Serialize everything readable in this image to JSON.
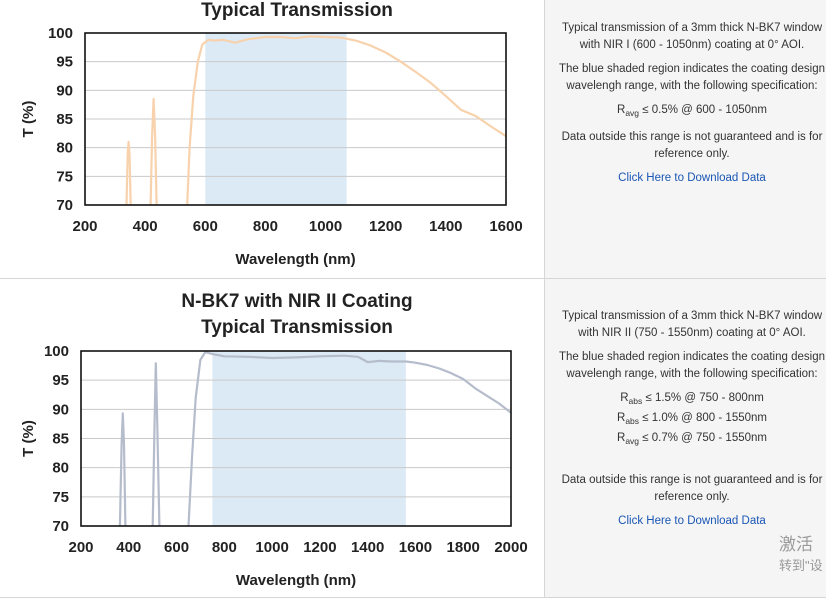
{
  "chart_data": [
    {
      "type": "line",
      "title": "Typical Transmission",
      "xlabel": "Wavelength (nm)",
      "ylabel": "T (%)",
      "xlim": [
        200,
        1600
      ],
      "ylim": [
        70,
        100
      ],
      "xticks": [
        200,
        400,
        600,
        800,
        1000,
        1200,
        1400,
        1600
      ],
      "yticks": [
        70,
        75,
        80,
        85,
        90,
        95,
        100
      ],
      "grid": true,
      "shaded_region": [
        600,
        1070
      ],
      "shade_color": "#dceaf6",
      "line_color": "#f8d2ac",
      "series": [
        {
          "values": [
            [
              338,
              70
            ],
            [
              342,
              79
            ],
            [
              345,
              81
            ],
            [
              348,
              79
            ],
            [
              352,
              70
            ]
          ]
        },
        {
          "values": [
            [
              418,
              70
            ],
            [
              423,
              82
            ],
            [
              428,
              88.5
            ],
            [
              433,
              82
            ],
            [
              438,
              70
            ]
          ]
        },
        {
          "values": [
            [
              540,
              70
            ],
            [
              548,
              80
            ],
            [
              560,
              89
            ],
            [
              575,
              95
            ],
            [
              590,
              98
            ],
            [
              610,
              98.8
            ],
            [
              630,
              98.7
            ],
            [
              660,
              98.8
            ],
            [
              700,
              98.3
            ],
            [
              740,
              98.9
            ],
            [
              800,
              99.3
            ],
            [
              850,
              99.3
            ],
            [
              900,
              99.1
            ],
            [
              950,
              99.4
            ],
            [
              1000,
              99.3
            ],
            [
              1050,
              99.2
            ],
            [
              1100,
              98.7
            ],
            [
              1150,
              97.8
            ],
            [
              1200,
              96.6
            ],
            [
              1250,
              95
            ],
            [
              1300,
              93.2
            ],
            [
              1350,
              91.3
            ],
            [
              1400,
              89
            ],
            [
              1450,
              86.6
            ],
            [
              1500,
              85.5
            ],
            [
              1550,
              83.7
            ],
            [
              1600,
              82
            ]
          ]
        }
      ]
    },
    {
      "type": "line",
      "title": "N-BK7 with NIR II Coating Typical Transmission",
      "title_lines": [
        "N-BK7 with NIR II Coating",
        "Typical Transmission"
      ],
      "xlabel": "Wavelength (nm)",
      "ylabel": "T (%)",
      "xlim": [
        200,
        2000
      ],
      "ylim": [
        70,
        100
      ],
      "xticks": [
        200,
        400,
        600,
        800,
        1000,
        1200,
        1400,
        1600,
        1800,
        2000
      ],
      "yticks": [
        70,
        75,
        80,
        85,
        90,
        95,
        100
      ],
      "grid": true,
      "shaded_region": [
        750,
        1560
      ],
      "shade_color": "#dceaf6",
      "line_color": "#b5bccb",
      "series": [
        {
          "values": [
            [
              363,
              70
            ],
            [
              370,
              84
            ],
            [
              375,
              89.3
            ],
            [
              380,
              84
            ],
            [
              386,
              70
            ]
          ]
        },
        {
          "values": [
            [
              500,
              70
            ],
            [
              508,
              88
            ],
            [
              513,
              97.9
            ],
            [
              519,
              88
            ],
            [
              528,
              70
            ]
          ]
        },
        {
          "values": [
            [
              650,
              70
            ],
            [
              665,
              82
            ],
            [
              680,
              92
            ],
            [
              700,
              98.5
            ],
            [
              720,
              99.8
            ],
            [
              760,
              99.4
            ],
            [
              800,
              99.1
            ],
            [
              900,
              99
            ],
            [
              1000,
              98.8
            ],
            [
              1100,
              98.9
            ],
            [
              1200,
              99.1
            ],
            [
              1300,
              99.2
            ],
            [
              1360,
              99
            ],
            [
              1400,
              98.1
            ],
            [
              1450,
              98.3
            ],
            [
              1500,
              98.2
            ],
            [
              1560,
              98.2
            ],
            [
              1600,
              98
            ],
            [
              1650,
              97.6
            ],
            [
              1700,
              97
            ],
            [
              1750,
              96.2
            ],
            [
              1800,
              95.2
            ],
            [
              1850,
              93.6
            ],
            [
              1900,
              92.3
            ],
            [
              1950,
              91
            ],
            [
              2000,
              89.4
            ]
          ]
        }
      ]
    }
  ],
  "panel1": {
    "title_line": "Typical Transmission",
    "desc_main": "Typical transmission of a 3mm thick N-BK7 window with NIR I (600 - 1050nm) coating at 0° AOI.",
    "desc_shaded": "The blue shaded region indicates the coating design wavelengh range, with the following specification:",
    "spec": [
      {
        "r": "R",
        "sub": "avg",
        "rest": "≤ 0.5% @ 600 - 1050nm"
      }
    ],
    "disclaimer": "Data outside this range is not guaranteed and is for reference only.",
    "link": "Click Here to Download Data"
  },
  "panel2": {
    "title_lines": [
      "N-BK7 with NIR II Coating",
      "Typical Transmission"
    ],
    "desc_main": "Typical transmission of a 3mm thick N-BK7 window with NIR II (750 - 1550nm) coating at 0° AOI.",
    "desc_shaded": "The blue shaded region indicates the coating design wavelengh range, with the following specification:",
    "spec": [
      {
        "r": "R",
        "sub": "abs",
        "rest": "≤ 1.5% @ 750 - 800nm"
      },
      {
        "r": "R",
        "sub": "abs",
        "rest": "≤ 1.0% @ 800 - 1550nm"
      },
      {
        "r": "R",
        "sub": "avg",
        "rest": "≤ 0.7% @ 750 - 1550nm"
      }
    ],
    "disclaimer": "Data outside this range is not guaranteed and is for reference only.",
    "link": "Click Here to Download Data"
  },
  "watermark": {
    "line1": "激活",
    "line2": "转到\"设"
  }
}
